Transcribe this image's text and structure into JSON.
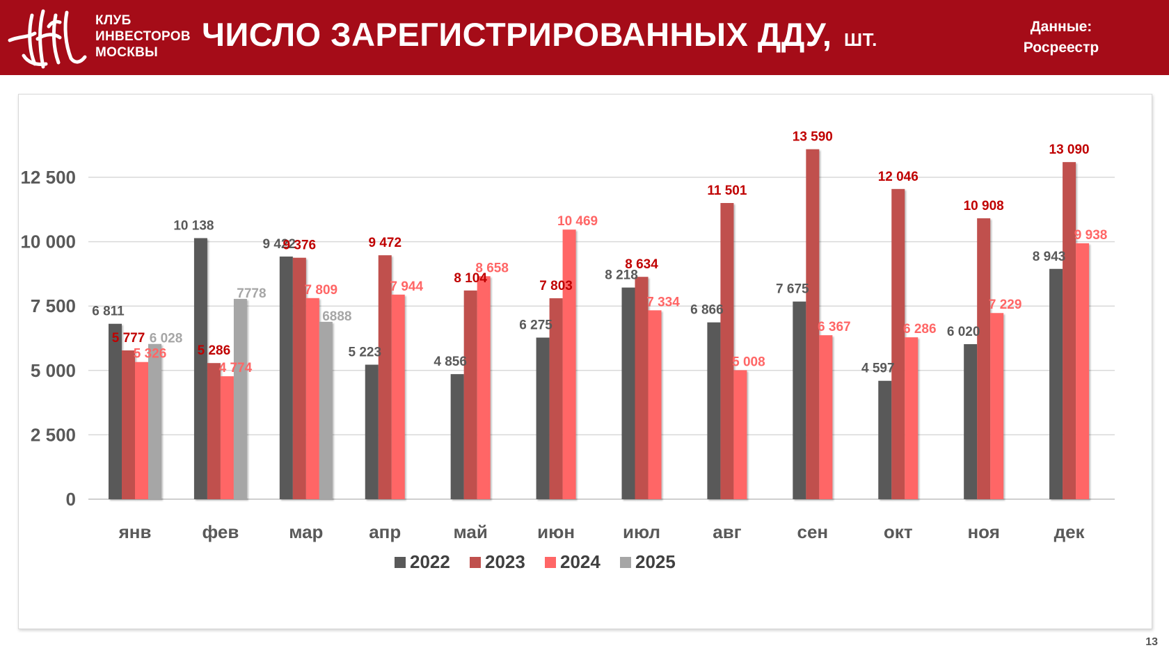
{
  "header": {
    "logo_text": "КЛУБ\nИНВЕСТОРОВ\nМОСКВЫ",
    "title": "ЧИСЛО ЗАРЕГИСТРИРОВАННЫХ ДДУ,",
    "title_unit": "ШТ.",
    "source_label": "Данные:",
    "source_name": "Росреестр"
  },
  "page_number": "13",
  "colors": {
    "header_bg": "#a50c18",
    "s2022": "#595959",
    "s2023": "#c0504d",
    "s2024": "#ff6666",
    "s2025": "#a6a6a6",
    "label_dark": "#595959",
    "label_red": "#c00000",
    "label_pink": "#ff6666",
    "label_grey": "#a6a6a6"
  },
  "chart_data": {
    "type": "bar",
    "categories": [
      "янв",
      "фев",
      "мар",
      "апр",
      "май",
      "июн",
      "июл",
      "авг",
      "сен",
      "окт",
      "ноя",
      "дек"
    ],
    "series": [
      {
        "name": "2022",
        "values": [
          6811,
          10138,
          9422,
          5223,
          4856,
          6275,
          8218,
          6866,
          7675,
          4597,
          6020,
          8943
        ],
        "labels": [
          "6 811",
          "10 138",
          "9 422",
          "5 223",
          "4 856",
          "6 275",
          "8 218",
          "6 866",
          "7 675",
          "4 597",
          "6 020",
          "8 943"
        ]
      },
      {
        "name": "2023",
        "values": [
          5777,
          5286,
          9376,
          9472,
          8104,
          7803,
          8634,
          11501,
          13590,
          12046,
          10908,
          13090
        ],
        "labels": [
          "5 777",
          "5 286",
          "9 376",
          "9 472",
          "8 104",
          "7 803",
          "8 634",
          "11 501",
          "13 590",
          "12 046",
          "10 908",
          "13 090"
        ]
      },
      {
        "name": "2024",
        "values": [
          5326,
          4774,
          7809,
          7944,
          8658,
          10469,
          7334,
          5008,
          6367,
          6286,
          7229,
          9938
        ],
        "labels": [
          "5 326",
          "4 774",
          "7 809",
          "7 944",
          "8 658",
          "10 469",
          "7 334",
          "5 008",
          "6 367",
          "6 286",
          "7 229",
          "9 938"
        ]
      },
      {
        "name": "2025",
        "values": [
          6028,
          7778,
          6888,
          null,
          null,
          null,
          null,
          null,
          null,
          null,
          null,
          null
        ],
        "labels": [
          "6 028",
          "7778",
          "6888",
          null,
          null,
          null,
          null,
          null,
          null,
          null,
          null,
          null
        ]
      }
    ],
    "y_ticks": [
      "0",
      "2 500",
      "5 000",
      "7 500",
      "10 000",
      "12 500"
    ],
    "y_tick_values": [
      0,
      2500,
      5000,
      7500,
      10000,
      12500
    ],
    "ylim": [
      0,
      15000
    ],
    "grid": true,
    "legend_position": "bottom"
  }
}
